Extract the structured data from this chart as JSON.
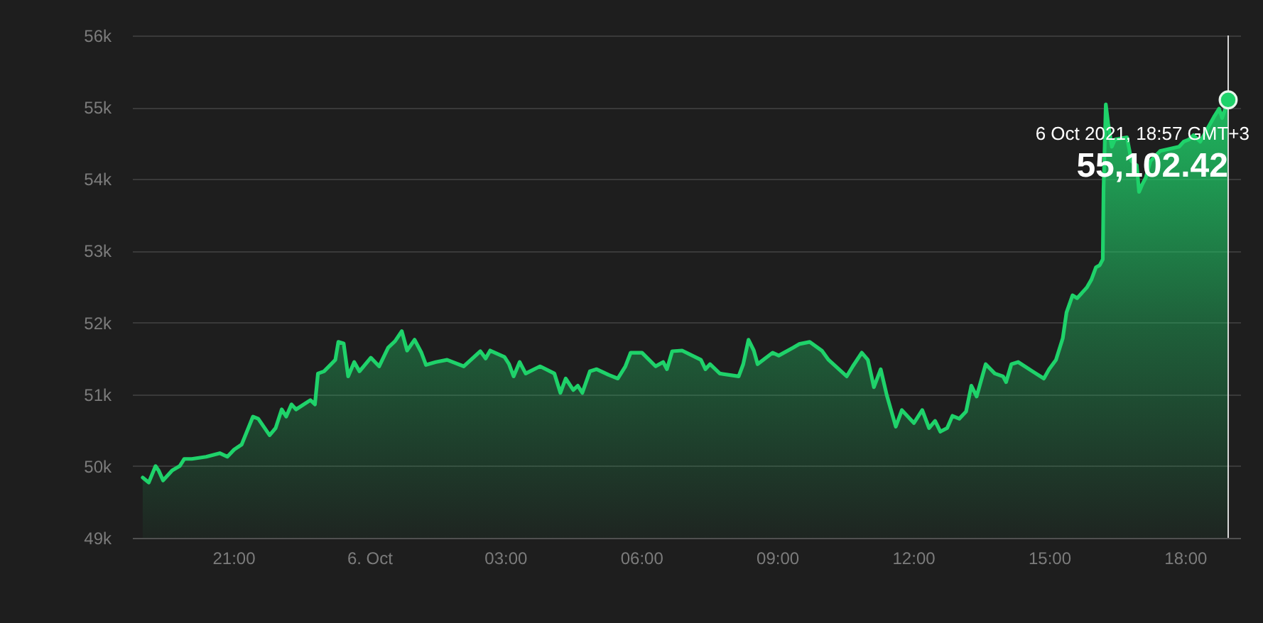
{
  "chart_data": {
    "type": "area",
    "x": [
      "2021-10-05T19:00",
      "2021-10-05T19:08",
      "2021-10-05T19:17",
      "2021-10-05T19:21",
      "2021-10-05T19:27",
      "2021-10-05T19:39",
      "2021-10-05T19:49",
      "2021-10-05T19:55",
      "2021-10-05T20:05",
      "2021-10-05T20:24",
      "2021-10-05T20:42",
      "2021-10-05T20:52",
      "2021-10-05T21:01",
      "2021-10-05T21:11",
      "2021-10-05T21:26",
      "2021-10-05T21:33",
      "2021-10-05T21:48",
      "2021-10-05T21:56",
      "2021-10-05T22:04",
      "2021-10-05T22:10",
      "2021-10-05T22:17",
      "2021-10-05T22:23",
      "2021-10-05T22:42",
      "2021-10-05T22:48",
      "2021-10-05T22:52",
      "2021-10-05T23:00",
      "2021-10-05T23:15",
      "2021-10-05T23:19",
      "2021-10-05T23:26",
      "2021-10-05T23:32",
      "2021-10-05T23:40",
      "2021-10-05T23:47",
      "2021-10-06T00:02",
      "2021-10-06T00:13",
      "2021-10-06T00:25",
      "2021-10-06T00:34",
      "2021-10-06T00:43",
      "2021-10-06T00:50",
      "2021-10-06T01:00",
      "2021-10-06T01:09",
      "2021-10-06T01:15",
      "2021-10-06T01:28",
      "2021-10-06T01:43",
      "2021-10-06T02:05",
      "2021-10-06T02:27",
      "2021-10-06T02:34",
      "2021-10-06T02:40",
      "2021-10-06T02:59",
      "2021-10-06T03:05",
      "2021-10-06T03:11",
      "2021-10-06T03:19",
      "2021-10-06T03:27",
      "2021-10-06T03:46",
      "2021-10-06T04:05",
      "2021-10-06T04:13",
      "2021-10-06T04:20",
      "2021-10-06T04:30",
      "2021-10-06T04:36",
      "2021-10-06T04:42",
      "2021-10-06T04:52",
      "2021-10-06T05:01",
      "2021-10-06T05:17",
      "2021-10-06T05:29",
      "2021-10-06T05:39",
      "2021-10-06T05:46",
      "2021-10-06T06:01",
      "2021-10-06T06:19",
      "2021-10-06T06:29",
      "2021-10-06T06:34",
      "2021-10-06T06:41",
      "2021-10-06T06:54",
      "2021-10-06T07:19",
      "2021-10-06T07:25",
      "2021-10-06T07:31",
      "2021-10-06T07:44",
      "2021-10-06T08:09",
      "2021-10-06T08:15",
      "2021-10-06T08:22",
      "2021-10-06T08:29",
      "2021-10-06T08:34",
      "2021-10-06T08:54",
      "2021-10-06T09:02",
      "2021-10-06T09:21",
      "2021-10-06T09:29",
      "2021-10-06T09:43",
      "2021-10-06T09:59",
      "2021-10-06T10:08",
      "2021-10-06T10:32",
      "2021-10-06T10:40",
      "2021-10-06T10:52",
      "2021-10-06T11:00",
      "2021-10-06T11:08",
      "2021-10-06T11:17",
      "2021-10-06T11:25",
      "2021-10-06T11:37",
      "2021-10-06T11:45",
      "2021-10-06T12:01",
      "2021-10-06T12:12",
      "2021-10-06T12:21",
      "2021-10-06T12:29",
      "2021-10-06T12:36",
      "2021-10-06T12:45",
      "2021-10-06T12:52",
      "2021-10-06T13:01",
      "2021-10-06T13:10",
      "2021-10-06T13:17",
      "2021-10-06T13:24",
      "2021-10-06T13:36",
      "2021-10-06T13:48",
      "2021-10-06T13:59",
      "2021-10-06T14:03",
      "2021-10-06T14:10",
      "2021-10-06T14:19",
      "2021-10-06T14:38",
      "2021-10-06T14:53",
      "2021-10-06T15:00",
      "2021-10-06T15:09",
      "2021-10-06T15:18",
      "2021-10-06T15:23",
      "2021-10-06T15:31",
      "2021-10-06T15:37",
      "2021-10-06T15:50",
      "2021-10-06T15:56",
      "2021-10-06T16:02",
      "2021-10-06T16:07",
      "2021-10-06T16:11",
      "2021-10-06T16:12",
      "2021-10-06T16:15",
      "2021-10-06T16:18",
      "2021-10-06T16:23",
      "2021-10-06T16:27",
      "2021-10-06T16:43",
      "2021-10-06T16:49",
      "2021-10-06T16:56",
      "2021-10-06T16:59",
      "2021-10-06T17:03",
      "2021-10-06T17:08",
      "2021-10-06T17:14",
      "2021-10-06T17:27",
      "2021-10-06T17:52",
      "2021-10-06T17:58",
      "2021-10-06T18:05",
      "2021-10-06T18:11",
      "2021-10-06T18:20",
      "2021-10-06T18:30",
      "2021-10-06T18:39",
      "2021-10-06T18:45",
      "2021-10-06T18:49",
      "2021-10-06T18:57"
    ],
    "series": [
      {
        "color": "#1fd26a",
        "values": [
          49840,
          49770,
          50000,
          49940,
          49800,
          49940,
          50000,
          50100,
          50100,
          50130,
          50180,
          50130,
          50230,
          50300,
          50690,
          50660,
          50430,
          50530,
          50790,
          50690,
          50860,
          50790,
          50920,
          50860,
          51290,
          51320,
          51480,
          51730,
          51710,
          51250,
          51450,
          51320,
          51510,
          51390,
          51650,
          51740,
          51880,
          51610,
          51760,
          51580,
          51410,
          51450,
          51480,
          51390,
          51600,
          51500,
          51610,
          51520,
          51420,
          51250,
          51450,
          51290,
          51390,
          51290,
          51020,
          51220,
          51060,
          51120,
          51020,
          51320,
          51350,
          51270,
          51220,
          51390,
          51580,
          51580,
          51390,
          51450,
          51350,
          51600,
          51610,
          51480,
          51350,
          51420,
          51290,
          51250,
          51420,
          51760,
          51610,
          51420,
          51580,
          51540,
          51650,
          51700,
          51730,
          51610,
          51480,
          51250,
          51390,
          51580,
          51480,
          51100,
          51350,
          50990,
          50550,
          50780,
          50600,
          50780,
          50530,
          50630,
          50480,
          50530,
          50700,
          50660,
          50760,
          51120,
          50970,
          51420,
          51290,
          51250,
          51170,
          51420,
          51450,
          51320,
          51220,
          51350,
          51480,
          51780,
          52140,
          52380,
          52340,
          52490,
          52600,
          52770,
          52800,
          52880,
          53860,
          55040,
          54780,
          54450,
          54550,
          54580,
          54250,
          54190,
          53820,
          53920,
          54020,
          54250,
          54390,
          54450,
          54520,
          54550,
          54610,
          54520,
          54710,
          54880,
          54980,
          54850,
          55102.42
        ]
      },
      {
        "type": "scatter",
        "x": [
          "2021-10-06T18:57"
        ],
        "values": [
          55102.42
        ],
        "color": "#1fd26a",
        "marker": "circle"
      }
    ],
    "xlim": [
      "2021-10-05T18:46",
      "2021-10-06T19:13"
    ],
    "xticks": [
      {
        "value": "2021-10-05T21:00",
        "label": "21:00"
      },
      {
        "value": "2021-10-06T00:00",
        "label": "6. Oct"
      },
      {
        "value": "2021-10-06T03:00",
        "label": "03:00"
      },
      {
        "value": "2021-10-06T06:00",
        "label": "06:00"
      },
      {
        "value": "2021-10-06T09:00",
        "label": "09:00"
      },
      {
        "value": "2021-10-06T12:00",
        "label": "12:00"
      },
      {
        "value": "2021-10-06T15:00",
        "label": "15:00"
      },
      {
        "value": "2021-10-06T18:00",
        "label": "18:00"
      }
    ],
    "ylim": [
      49000,
      56000
    ],
    "yticks": [
      {
        "value": 49000,
        "label": "49k"
      },
      {
        "value": 50000,
        "label": "50k"
      },
      {
        "value": 51000,
        "label": "51k"
      },
      {
        "value": 52000,
        "label": "52k"
      },
      {
        "value": 53000,
        "label": "53k"
      },
      {
        "value": 54000,
        "label": "54k"
      },
      {
        "value": 55000,
        "label": "55k"
      },
      {
        "value": 56000,
        "label": "56k"
      }
    ],
    "grid": "y",
    "ref_lines": [
      {
        "axis": "x",
        "value": "2021-10-06T18:57",
        "color": "#d9d9d9"
      }
    ],
    "annotations": [
      {
        "text": "6 Oct 2021, 18:57 GMT+3",
        "x": "2021-10-06T18:57",
        "y": 55102.42
      },
      {
        "text": "55,102.42",
        "x": "2021-10-06T18:57",
        "y": 55102.42
      }
    ]
  }
}
